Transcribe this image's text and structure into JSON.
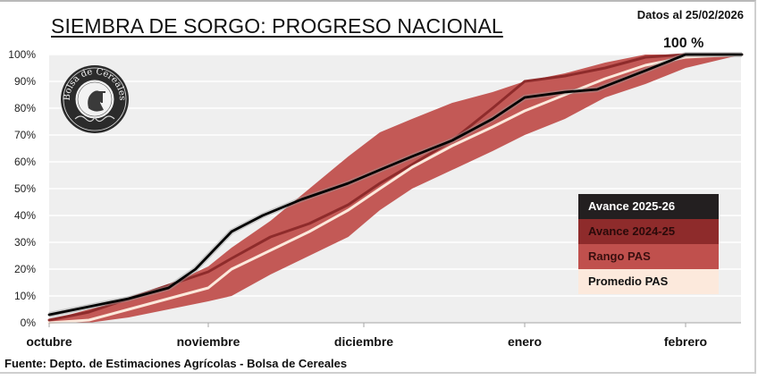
{
  "header": {
    "title": "SIEMBRA DE SORGO: PROGRESO NACIONAL",
    "date_label": "Datos al 25/02/2026",
    "current_value_label": "100 %"
  },
  "footer": {
    "source": "Fuente: Depto. de Estimaciones Agrícolas - Bolsa de Cereales"
  },
  "logo": {
    "text": "Bolsa de Cereales"
  },
  "legend": [
    {
      "label": "Avance 2025-26",
      "color": "#231f20",
      "text_color": "#ffffff"
    },
    {
      "label": "Avance 2024-25",
      "color": "#8e2b2b",
      "text_color": "#2a0a0a"
    },
    {
      "label": "Rango PAS",
      "color": "#c0504d",
      "text_color": "#3a0f0f"
    },
    {
      "label": "Promedio PAS",
      "color": "#fce9dc",
      "text_color": "#111111"
    }
  ],
  "chart_data": {
    "type": "area",
    "title": "SIEMBRA DE SORGO: PROGRESO NACIONAL",
    "xlabel": "",
    "ylabel": "",
    "x_unit": "months since 1 October",
    "xlim": [
      0,
      4.35
    ],
    "ylim": [
      0,
      100
    ],
    "x_tick_labels": [
      "octubre",
      "noviembre",
      "diciembre",
      "enero",
      "febrero"
    ],
    "x_ticks": [
      0,
      1,
      2,
      3,
      4
    ],
    "y_tick_labels": [
      "0%",
      "10%",
      "20%",
      "30%",
      "40%",
      "50%",
      "60%",
      "70%",
      "80%",
      "90%",
      "100%"
    ],
    "y_ticks": [
      0,
      10,
      20,
      30,
      40,
      50,
      60,
      70,
      80,
      90,
      100
    ],
    "grid": true,
    "legend_position": "bottom-right",
    "annotations": [
      {
        "text": "100 %",
        "x": 3.95,
        "y": 100
      }
    ],
    "series": [
      {
        "name": "Rango PAS",
        "kind": "band",
        "color": "#c0504d",
        "x": [
          0,
          0.25,
          0.5,
          0.75,
          1.0,
          1.15,
          1.4,
          1.65,
          1.9,
          2.1,
          2.3,
          2.55,
          2.8,
          3.0,
          3.25,
          3.5,
          3.75,
          4.0,
          4.35
        ],
        "upper": [
          1,
          5,
          9,
          14,
          21,
          28,
          38,
          50,
          62,
          71,
          76,
          82,
          86,
          90,
          93,
          97,
          100,
          100,
          100
        ],
        "lower": [
          0,
          0,
          2,
          5,
          8,
          10,
          18,
          25,
          32,
          42,
          50,
          57,
          64,
          70,
          76,
          84,
          89,
          95,
          100
        ]
      },
      {
        "name": "Avance 2024-25",
        "kind": "line",
        "color": "#8e2b2b",
        "x": [
          0,
          0.25,
          0.5,
          0.75,
          1.0,
          1.15,
          1.4,
          1.65,
          1.9,
          2.1,
          2.3,
          2.55,
          2.8,
          3.0,
          3.25,
          3.5,
          3.75,
          4.0,
          4.35
        ],
        "values": [
          1,
          4,
          9,
          14,
          19,
          24,
          32,
          37,
          44,
          52,
          59,
          68,
          80,
          90,
          92,
          95,
          99,
          100,
          100
        ]
      },
      {
        "name": "Promedio PAS",
        "kind": "line",
        "color": "#fce9dc",
        "x": [
          0,
          0.25,
          0.5,
          0.75,
          1.0,
          1.15,
          1.4,
          1.65,
          1.9,
          2.1,
          2.3,
          2.55,
          2.8,
          3.0,
          3.25,
          3.5,
          3.75,
          4.0,
          4.35
        ],
        "values": [
          0,
          1,
          5,
          9,
          13,
          20,
          27,
          34,
          42,
          50,
          58,
          66,
          73,
          79,
          85,
          91,
          96,
          99,
          100
        ]
      },
      {
        "name": "Avance 2025-26",
        "kind": "line",
        "color": "#000000",
        "x": [
          0,
          0.25,
          0.5,
          0.75,
          0.92,
          1.15,
          1.35,
          1.6,
          1.9,
          2.1,
          2.3,
          2.55,
          2.8,
          3.0,
          3.25,
          3.45,
          3.75,
          4.0,
          4.35
        ],
        "values": [
          3,
          6,
          9,
          13,
          20,
          34,
          40,
          46,
          52,
          57,
          62,
          68,
          76,
          84,
          86,
          87,
          94,
          100,
          100
        ]
      }
    ]
  }
}
